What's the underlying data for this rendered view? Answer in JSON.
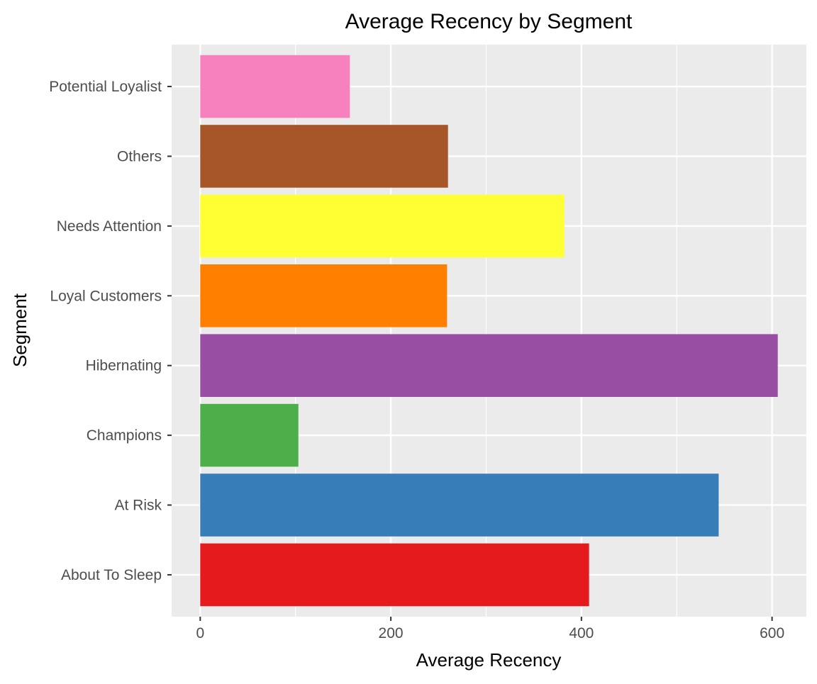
{
  "chart_data": {
    "type": "bar",
    "orientation": "horizontal",
    "title": "Average Recency by Segment",
    "xlabel": "Average Recency",
    "ylabel": "Segment",
    "categories": [
      "About To Sleep",
      "At Risk",
      "Champions",
      "Hibernating",
      "Loyal Customers",
      "Needs Attention",
      "Others",
      "Potential Loyalist"
    ],
    "values": [
      408,
      544,
      103,
      606,
      259,
      382,
      260,
      157
    ],
    "colors": [
      "#E41A1C",
      "#377EB8",
      "#4DAF4A",
      "#984EA3",
      "#FF7F00",
      "#FFFF33",
      "#A65628",
      "#F781BF"
    ],
    "xlim": [
      -30,
      636
    ],
    "xticks": [
      0,
      200,
      400,
      600
    ],
    "grid": true,
    "legend": "none",
    "panel_background": "#EBEBEB"
  }
}
